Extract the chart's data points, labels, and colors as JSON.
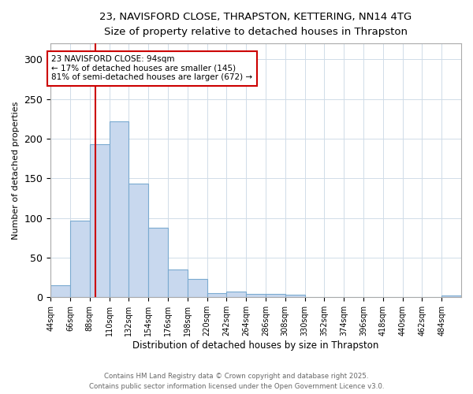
{
  "title_line1": "23, NAVISFORD CLOSE, THRAPSTON, KETTERING, NN14 4TG",
  "title_line2": "Size of property relative to detached houses in Thrapston",
  "xlabel": "Distribution of detached houses by size in Thrapston",
  "ylabel": "Number of detached properties",
  "bin_edges": [
    44,
    66,
    88,
    110,
    132,
    154,
    176,
    198,
    220,
    242,
    264,
    286,
    308,
    330,
    352,
    374,
    396,
    418,
    440,
    462,
    484,
    506
  ],
  "bar_heights": [
    15,
    97,
    193,
    222,
    143,
    88,
    35,
    23,
    5,
    7,
    4,
    4,
    3,
    0,
    0,
    0,
    0,
    0,
    0,
    0,
    2
  ],
  "bar_color": "#c8d8ee",
  "bar_edge_color": "#7aaad0",
  "property_size": 94,
  "red_line_color": "#cc0000",
  "annotation_text": "23 NAVISFORD CLOSE: 94sqm\n← 17% of detached houses are smaller (145)\n81% of semi-detached houses are larger (672) →",
  "annotation_box_color": "#ffffff",
  "annotation_box_edge": "#cc0000",
  "ylim": [
    0,
    320
  ],
  "yticks": [
    0,
    50,
    100,
    150,
    200,
    250,
    300
  ],
  "grid_color": "#d0dce8",
  "background_color": "#ffffff",
  "footnote_line1": "Contains HM Land Registry data © Crown copyright and database right 2025.",
  "footnote_line2": "Contains public sector information licensed under the Open Government Licence v3.0.",
  "tick_labels": [
    "44sqm",
    "66sqm",
    "88sqm",
    "110sqm",
    "132sqm",
    "154sqm",
    "176sqm",
    "198sqm",
    "220sqm",
    "242sqm",
    "264sqm",
    "286sqm",
    "308sqm",
    "330sqm",
    "352sqm",
    "374sqm",
    "396sqm",
    "418sqm",
    "440sqm",
    "462sqm",
    "484sqm"
  ]
}
